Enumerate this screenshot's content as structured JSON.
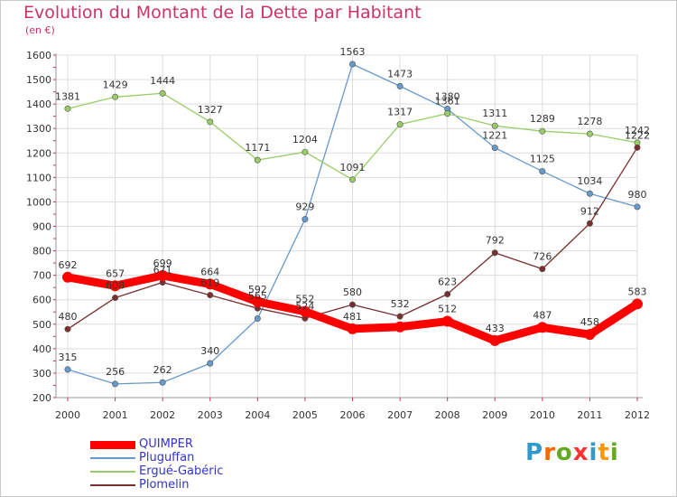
{
  "header": {
    "title": "Evolution du Montant de la Dette par Habitant",
    "subtitle": "(en €)"
  },
  "logo": {
    "text": "Proxiti",
    "colors": [
      "#3399cc",
      "#ff6600",
      "#66aa22",
      "#ff3333",
      "#3399cc",
      "#ff9900",
      "#66aa22"
    ]
  },
  "chart_data": {
    "type": "line",
    "x": [
      "2000",
      "2001",
      "2002",
      "2003",
      "2004",
      "2005",
      "2006",
      "2007",
      "2008",
      "2009",
      "2010",
      "2011",
      "2012"
    ],
    "ylim": [
      200,
      1600
    ],
    "yticks": [
      200,
      300,
      400,
      500,
      600,
      700,
      800,
      900,
      1000,
      1100,
      1200,
      1300,
      1400,
      1500,
      1600
    ],
    "grid": true,
    "legend_position": "bottom-left",
    "series": [
      {
        "name": "QUIMPER",
        "color": "#ff0000",
        "values": [
          692,
          657,
          699,
          664,
          592,
          552,
          481,
          489,
          512,
          433,
          487,
          458,
          583
        ],
        "labels": [
          "692",
          "657",
          "699",
          "664",
          "592",
          "552",
          "481",
          "",
          "512",
          "433",
          "487",
          "458",
          "583"
        ]
      },
      {
        "name": "Pluguffan",
        "color": "#6699cc",
        "values": [
          315,
          256,
          262,
          340,
          523,
          929,
          1563,
          1473,
          1380,
          1221,
          1125,
          1034,
          980
        ],
        "labels": [
          "315",
          "256",
          "262",
          "340",
          "",
          "929",
          "1563",
          "1473",
          "1380",
          "1221",
          "1125",
          "1034",
          "980"
        ]
      },
      {
        "name": "Ergué-Gabéric",
        "color": "#99cc66",
        "values": [
          1381,
          1429,
          1444,
          1327,
          1171,
          1204,
          1091,
          1317,
          1361,
          1311,
          1289,
          1278,
          1242
        ],
        "labels": [
          "1381",
          "1429",
          "1444",
          "1327",
          "1171",
          "1204",
          "1091",
          "1317",
          "1361",
          "1311",
          "1289",
          "1278",
          "1242"
        ]
      },
      {
        "name": "Plomelin",
        "color": "#7a2e2e",
        "values": [
          480,
          608,
          671,
          619,
          565,
          524,
          580,
          532,
          623,
          792,
          726,
          912,
          1222
        ],
        "labels": [
          "480",
          "608",
          "671",
          "619",
          "565",
          "524",
          "580",
          "532",
          "623",
          "792",
          "726",
          "912",
          "1222"
        ]
      }
    ]
  }
}
